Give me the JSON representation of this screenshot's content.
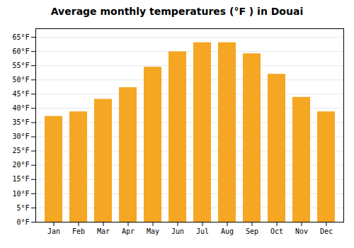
{
  "chart_data": {
    "type": "bar",
    "title": "Average monthly temperatures (°F ) in Douai",
    "categories": [
      "Jan",
      "Feb",
      "Mar",
      "Apr",
      "May",
      "Jun",
      "Jul",
      "Aug",
      "Sep",
      "Oct",
      "Nov",
      "Dec"
    ],
    "values": [
      37.2,
      38.8,
      43.2,
      47.3,
      54.5,
      59.9,
      63.1,
      63.1,
      59.2,
      52.0,
      43.9,
      38.8
    ],
    "color": "#F5A623",
    "ylim": [
      0,
      68
    ],
    "yticks": [
      {
        "value": 0,
        "label": "0°F"
      },
      {
        "value": 5,
        "label": "5°F"
      },
      {
        "value": 10,
        "label": "10°F"
      },
      {
        "value": 15,
        "label": "15°F"
      },
      {
        "value": 20,
        "label": "20°F"
      },
      {
        "value": 25,
        "label": "25°F"
      },
      {
        "value": 30,
        "label": "30°F"
      },
      {
        "value": 35,
        "label": "35°F"
      },
      {
        "value": 40,
        "label": "40°F"
      },
      {
        "value": 45,
        "label": "45°F"
      },
      {
        "value": 50,
        "label": "50°F"
      },
      {
        "value": 55,
        "label": "55°F"
      },
      {
        "value": 60,
        "label": "60°F"
      },
      {
        "value": 65,
        "label": "65°F"
      }
    ],
    "grid": true
  }
}
